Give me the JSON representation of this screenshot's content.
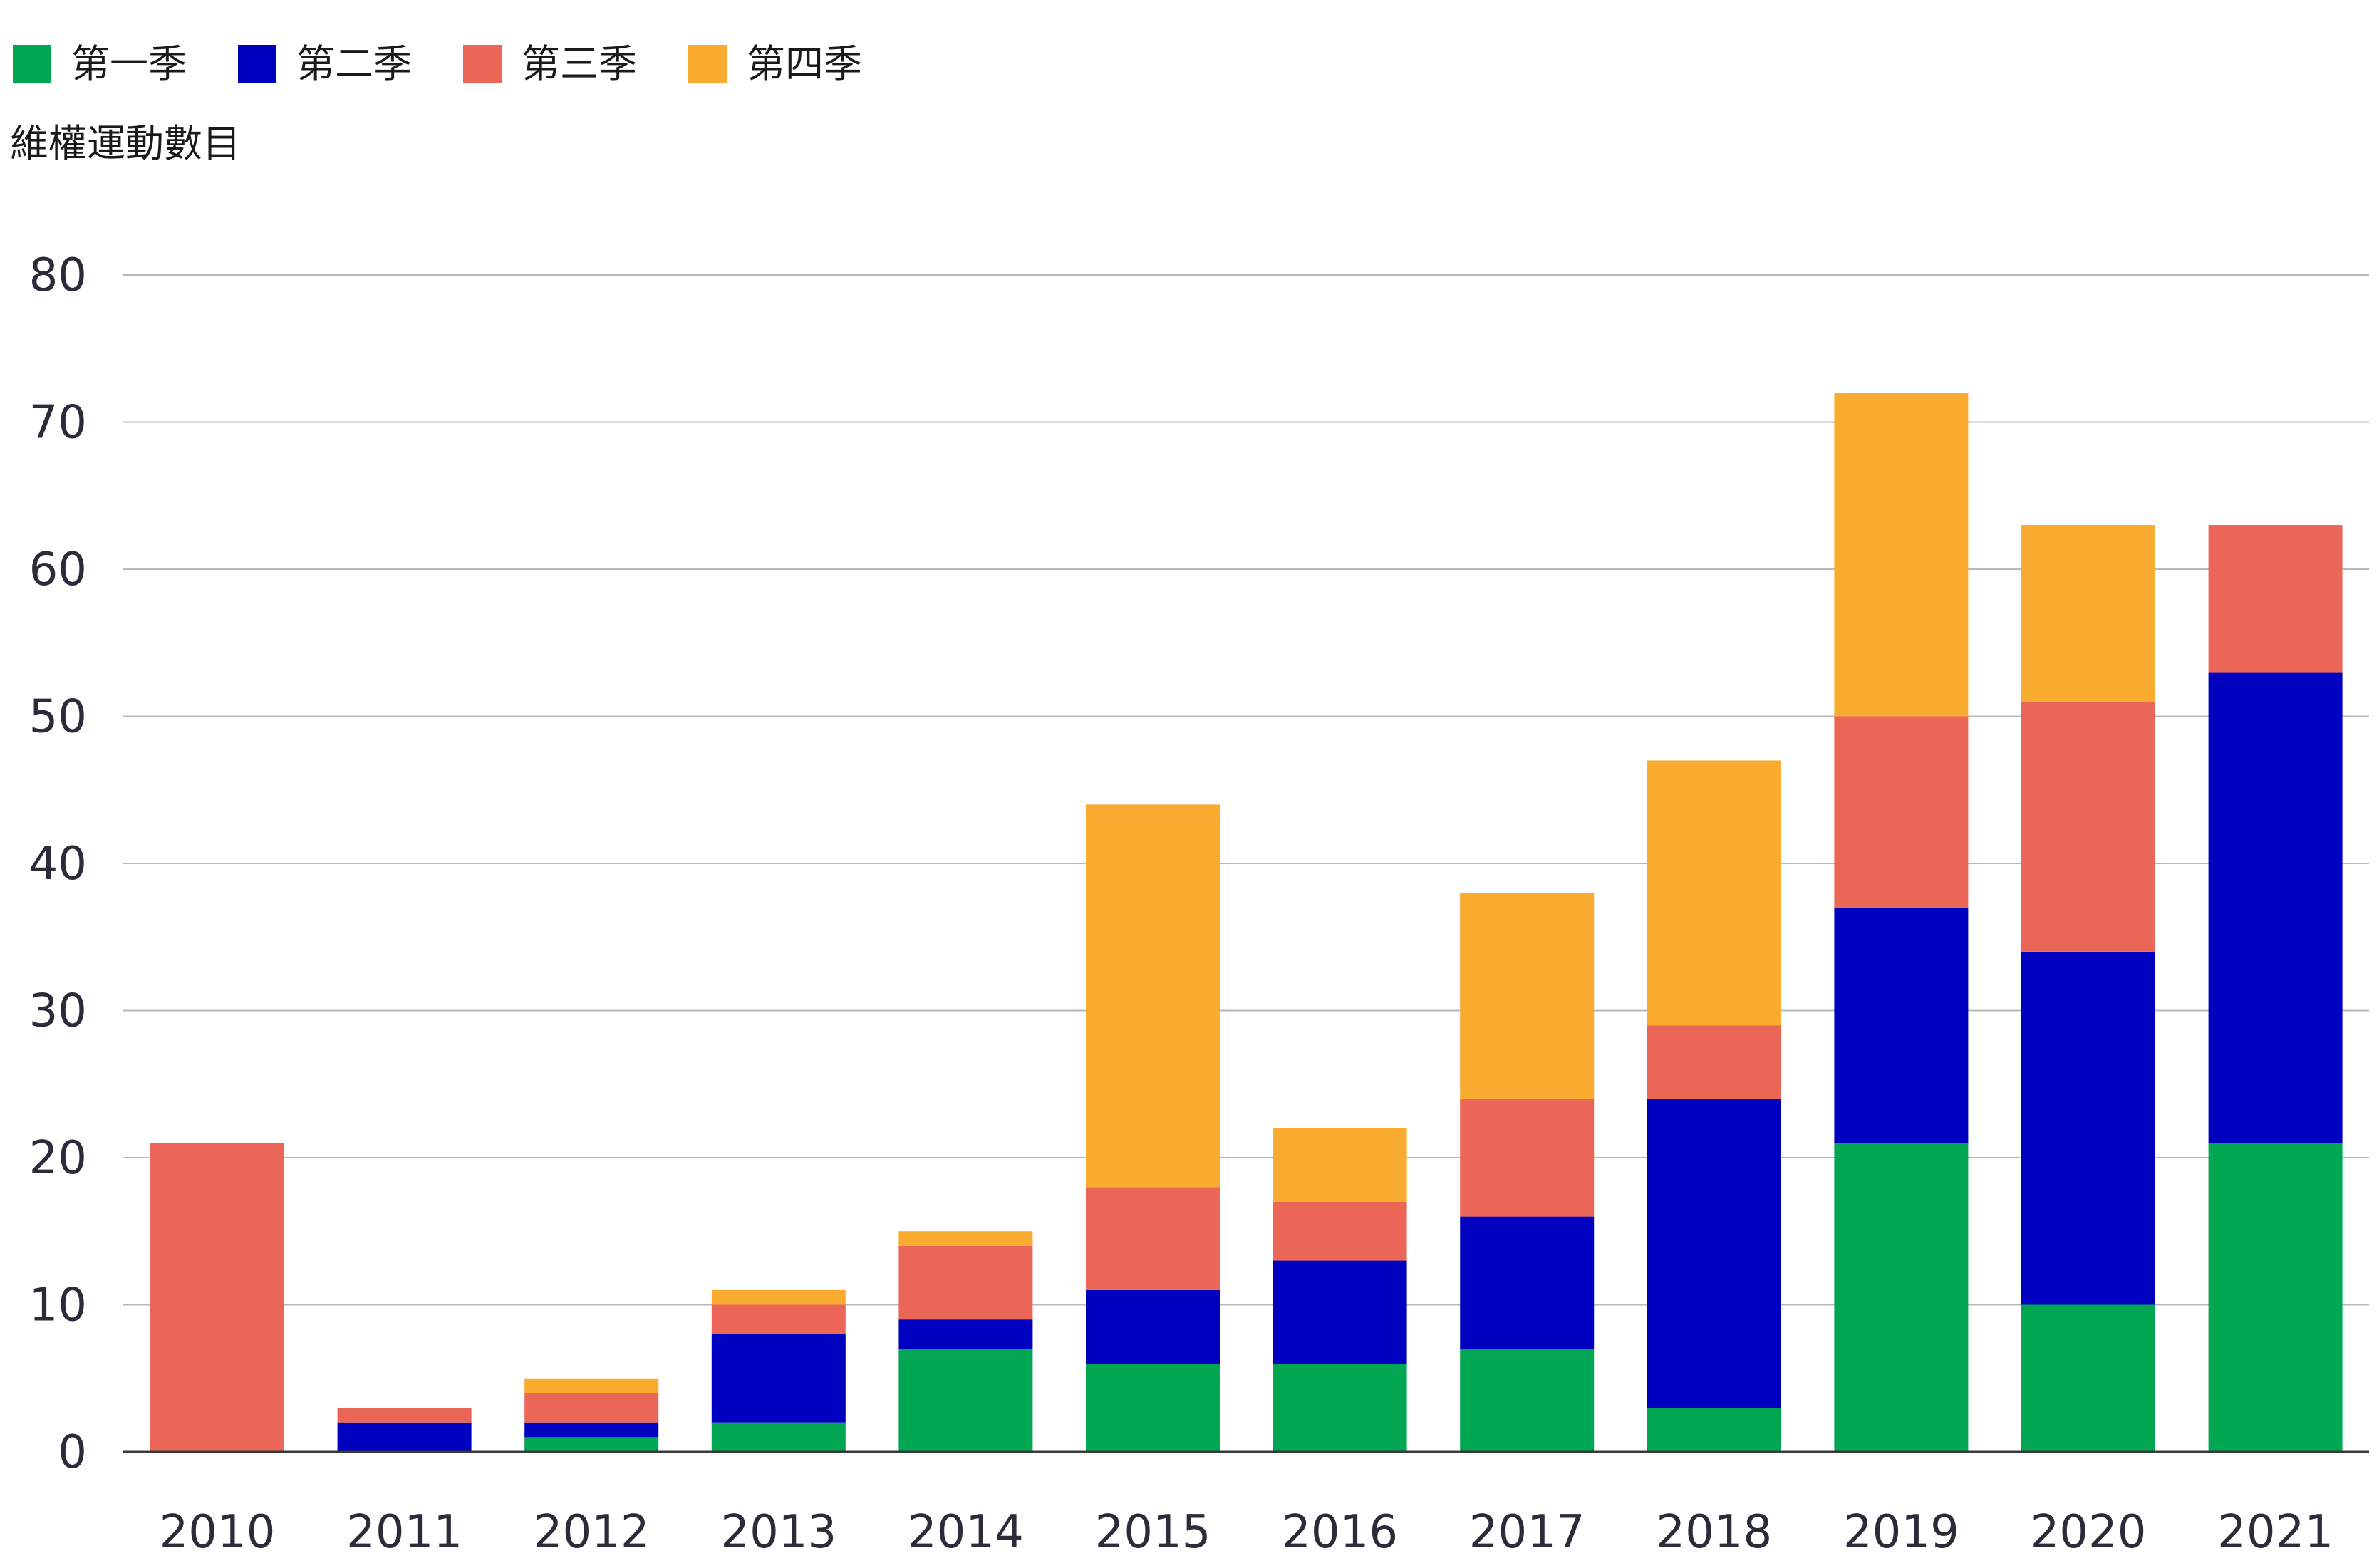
{
  "chart_data": {
    "type": "bar",
    "stacked": true,
    "title": "",
    "xlabel": "",
    "ylabel": "維權運動數目",
    "ylim": [
      0,
      80
    ],
    "yticks": [
      0,
      10,
      20,
      30,
      40,
      50,
      60,
      70,
      80
    ],
    "grid": true,
    "legend_position": "top-left",
    "categories": [
      "2010",
      "2011",
      "2012",
      "2013",
      "2014",
      "2015",
      "2016",
      "2017",
      "2018",
      "2019",
      "2020",
      "2021"
    ],
    "series": [
      {
        "name": "第一季",
        "color": "#00A651",
        "values": [
          0,
          0,
          1,
          2,
          7,
          6,
          6,
          7,
          3,
          21,
          10,
          21
        ]
      },
      {
        "name": "第二季",
        "color": "#0000C0",
        "values": [
          0,
          2,
          1,
          6,
          2,
          5,
          7,
          9,
          21,
          16,
          24,
          32
        ]
      },
      {
        "name": "第三季",
        "color": "#EC6657",
        "values": [
          21,
          1,
          2,
          2,
          5,
          7,
          4,
          8,
          5,
          13,
          17,
          10
        ]
      },
      {
        "name": "第四季",
        "color": "#F8AB2F",
        "values": [
          0,
          0,
          1,
          1,
          1,
          26,
          5,
          14,
          18,
          22,
          12,
          0
        ]
      }
    ]
  },
  "colors": {
    "gridline": "#b8b8b8",
    "axis": "#3a3a3a",
    "tick_text": "#2b2b3a"
  }
}
